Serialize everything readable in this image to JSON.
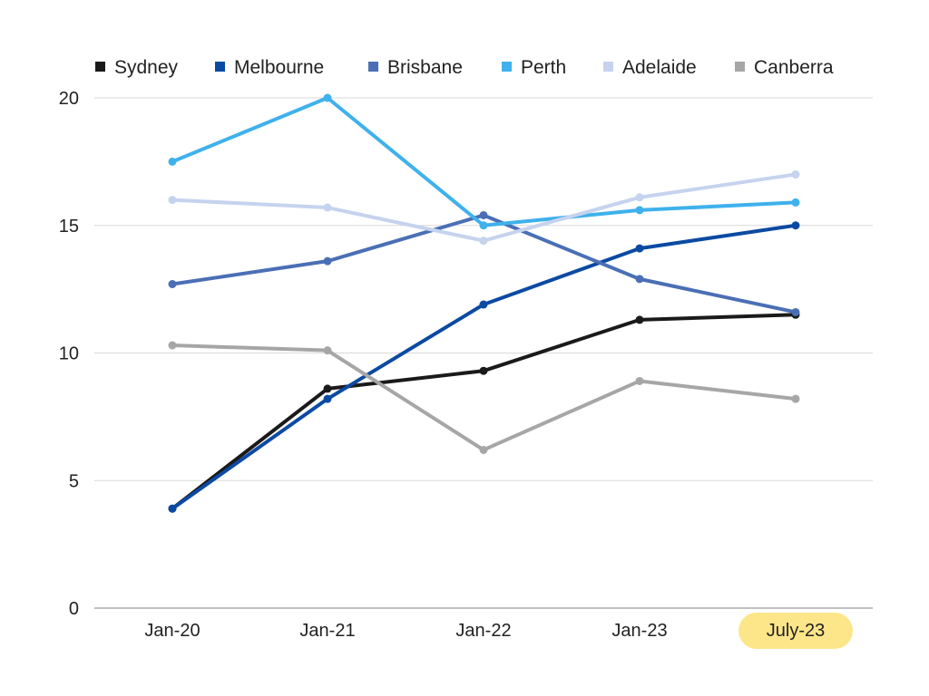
{
  "chart_data": {
    "type": "line",
    "categories": [
      "Jan-20",
      "Jan-21",
      "Jan-22",
      "Jan-23",
      "July-23"
    ],
    "highlighted_category": "July-23",
    "highlight_color": "#FDE68A",
    "ylim": [
      0,
      20
    ],
    "yticks": [
      "0",
      "5",
      "10",
      "15",
      "20"
    ],
    "grid": true,
    "legend_position": "top",
    "series": [
      {
        "name": "Sydney",
        "color": "#1a1a1a",
        "values": [
          3.9,
          8.6,
          9.3,
          11.3,
          11.5
        ]
      },
      {
        "name": "Melbourne",
        "color": "#0b4aa2",
        "values": [
          3.9,
          8.2,
          11.9,
          14.1,
          15.0
        ]
      },
      {
        "name": "Brisbane",
        "color": "#4a6fb5",
        "values": [
          12.7,
          13.6,
          15.4,
          12.9,
          11.6
        ]
      },
      {
        "name": "Perth",
        "color": "#3fb1ec",
        "values": [
          17.5,
          20.0,
          15.0,
          15.6,
          15.9
        ]
      },
      {
        "name": "Adelaide",
        "color": "#c5d3ee",
        "values": [
          16.0,
          15.7,
          14.4,
          16.1,
          17.0
        ]
      },
      {
        "name": "Canberra",
        "color": "#a6a6a6",
        "values": [
          10.3,
          10.1,
          6.2,
          8.9,
          8.2
        ]
      }
    ]
  }
}
